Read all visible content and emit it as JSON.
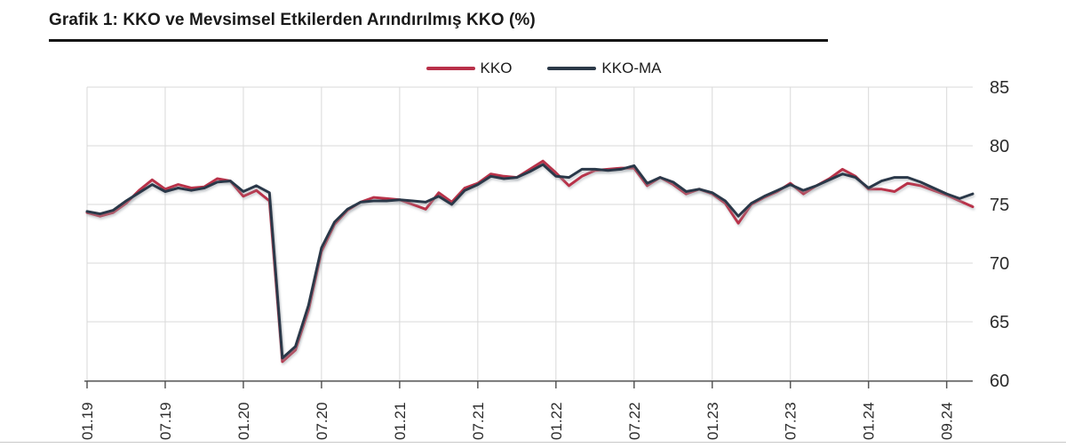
{
  "header": {
    "title": "Grafik 1: KKO ve Mevsimsel Etkilerden Arındırılmış KKO (%)"
  },
  "legend": {
    "items": [
      {
        "label": "KKO",
        "color": "#b93049"
      },
      {
        "label": "KKO-MA",
        "color": "#2b3948"
      }
    ]
  },
  "colors": {
    "kko": "#b93049",
    "kko_ma": "#2b3948",
    "grid": "#d9d9d9",
    "axis": "#595959",
    "tick_label": "#2b2b2b",
    "shadow": "#9aa0a6"
  },
  "chart_data": {
    "type": "line",
    "title": "Grafik 1: KKO ve Mevsimsel Etkilerden Arındırılmış KKO (%)",
    "xlabel": "",
    "ylabel": "",
    "ylim": [
      60,
      85
    ],
    "yticks": [
      60,
      65,
      70,
      75,
      80,
      85
    ],
    "grid": true,
    "legend_position": "top-center",
    "y_axis_side": "right",
    "categories": [
      "01.19",
      "02.19",
      "03.19",
      "04.19",
      "05.19",
      "06.19",
      "07.19",
      "08.19",
      "09.19",
      "10.19",
      "11.19",
      "12.19",
      "01.20",
      "02.20",
      "03.20",
      "04.20",
      "05.20",
      "06.20",
      "07.20",
      "08.20",
      "09.20",
      "10.20",
      "11.20",
      "12.20",
      "01.21",
      "02.21",
      "03.21",
      "04.21",
      "05.21",
      "06.21",
      "07.21",
      "08.21",
      "09.21",
      "10.21",
      "11.21",
      "12.21",
      "01.22",
      "02.22",
      "03.22",
      "04.22",
      "05.22",
      "06.22",
      "07.22",
      "08.22",
      "09.22",
      "10.22",
      "11.22",
      "12.22",
      "01.23",
      "02.23",
      "03.23",
      "04.23",
      "05.23",
      "06.23",
      "07.23",
      "08.23",
      "09.23",
      "10.23",
      "11.23",
      "12.23",
      "01.24",
      "02.24",
      "03.24",
      "04.24",
      "05.24",
      "06.24",
      "07.24",
      "08.24",
      "09.24"
    ],
    "xtick_labels": [
      "01.19",
      "07.19",
      "01.20",
      "07.20",
      "01.21",
      "07.21",
      "01.22",
      "07.22",
      "01.23",
      "07.23",
      "01.24",
      "09.24"
    ],
    "xtick_indices": [
      0,
      6,
      12,
      18,
      24,
      30,
      36,
      42,
      48,
      54,
      60,
      66
    ],
    "series": [
      {
        "name": "KKO",
        "color": "#b93049",
        "values": [
          74.3,
          74.0,
          74.3,
          75.1,
          76.2,
          77.1,
          76.3,
          76.7,
          76.4,
          76.5,
          77.2,
          77.0,
          75.7,
          76.2,
          75.3,
          61.6,
          62.6,
          66.0,
          71.0,
          73.3,
          74.5,
          75.2,
          75.6,
          75.5,
          75.4,
          75.0,
          74.6,
          76.0,
          75.2,
          76.4,
          76.8,
          77.6,
          77.4,
          77.3,
          78.0,
          78.7,
          77.7,
          76.6,
          77.4,
          77.9,
          78.0,
          78.1,
          78.1,
          76.6,
          77.3,
          76.7,
          75.9,
          76.3,
          75.9,
          75.1,
          73.4,
          75.0,
          75.6,
          76.1,
          76.8,
          75.9,
          76.6,
          77.2,
          78.0,
          77.4,
          76.3,
          76.3,
          76.1,
          76.8,
          76.6,
          76.2,
          75.8,
          75.3,
          74.8
        ]
      },
      {
        "name": "KKO-MA",
        "color": "#2b3948",
        "values": [
          74.4,
          74.2,
          74.5,
          75.3,
          76.0,
          76.7,
          76.1,
          76.4,
          76.2,
          76.4,
          76.9,
          77.0,
          76.1,
          76.6,
          76.0,
          61.9,
          62.9,
          66.4,
          71.3,
          73.5,
          74.6,
          75.2,
          75.3,
          75.3,
          75.4,
          75.3,
          75.2,
          75.7,
          75.0,
          76.2,
          76.7,
          77.4,
          77.2,
          77.3,
          77.8,
          78.4,
          77.4,
          77.3,
          78.0,
          78.0,
          77.9,
          78.0,
          78.3,
          76.8,
          77.3,
          76.9,
          76.1,
          76.3,
          76.0,
          75.3,
          74.0,
          75.1,
          75.7,
          76.2,
          76.7,
          76.2,
          76.6,
          77.1,
          77.6,
          77.3,
          76.4,
          77.0,
          77.3,
          77.3,
          76.9,
          76.4,
          75.9,
          75.5,
          75.9
        ]
      }
    ]
  }
}
